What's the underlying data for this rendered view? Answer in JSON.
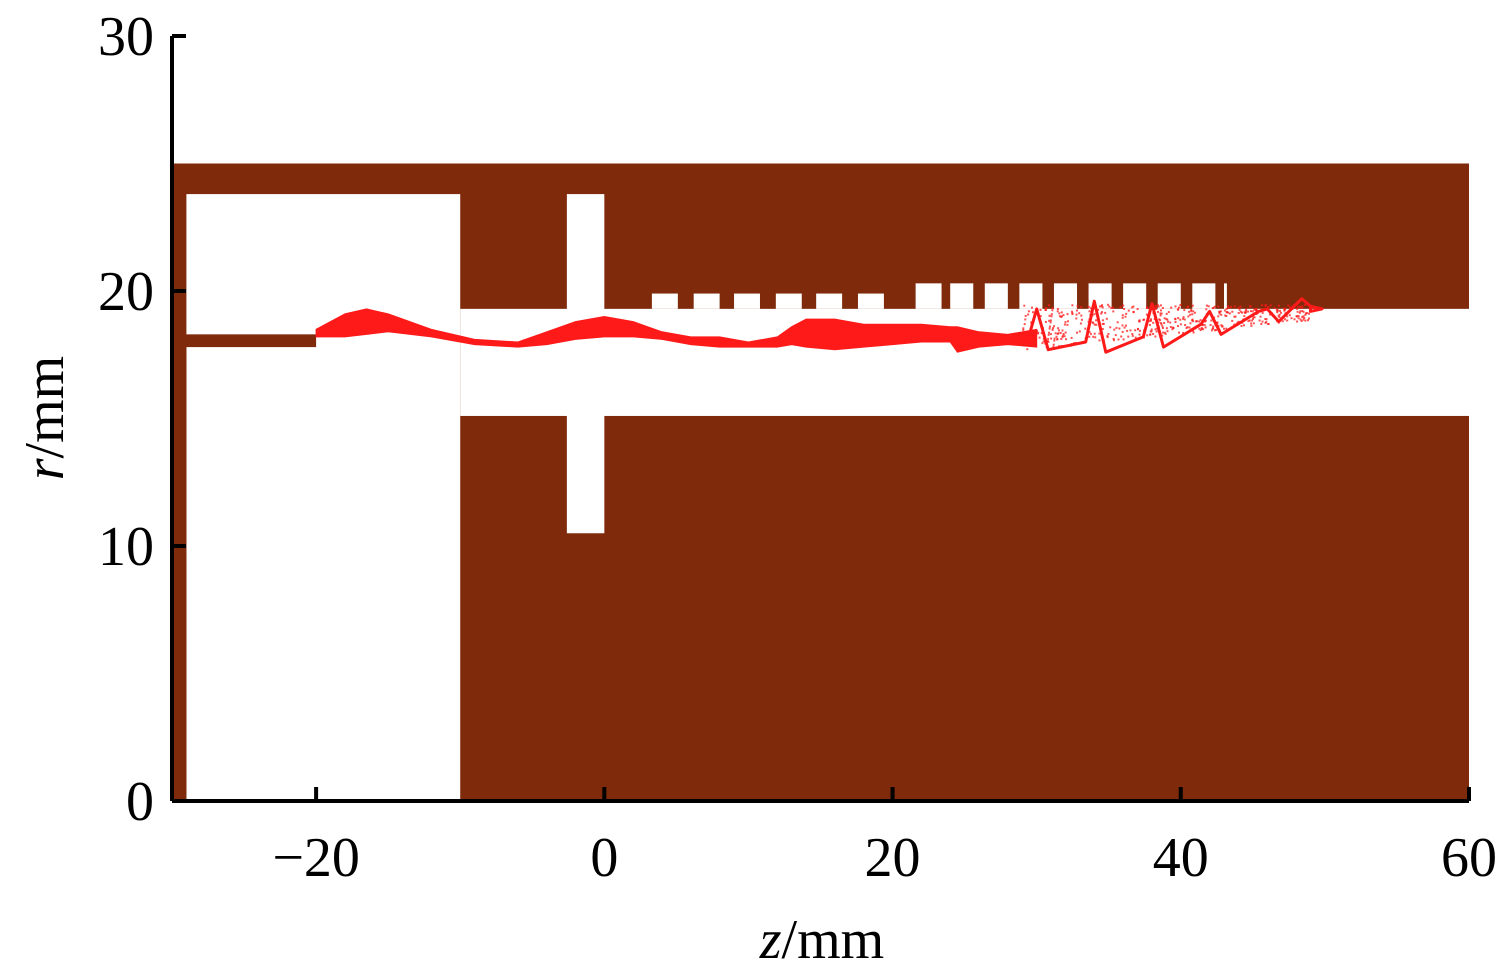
{
  "chart_data": {
    "type": "scatter",
    "xlabel_var": "z",
    "xlabel_unit": "/mm",
    "ylabel_var": "r",
    "ylabel_unit": "/mm",
    "xlim": [
      -30,
      60
    ],
    "ylim": [
      0,
      30
    ],
    "xticks": [
      -20,
      0,
      20,
      40,
      60
    ],
    "xtick_labels": [
      "−20",
      "0",
      "20",
      "40",
      "60"
    ],
    "yticks": [
      0,
      10,
      20,
      30
    ],
    "ytick_labels": [
      "0",
      "10",
      "20",
      "30"
    ],
    "grid": false,
    "colors": {
      "metal": "#7f2a0a",
      "beam": "#ff1a1a",
      "axis": "#000000"
    },
    "structure": {
      "outer_wall": {
        "z": [
          -30,
          60
        ],
        "r": [
          24.0,
          25.0
        ]
      },
      "cathode_rod": {
        "z": [
          -30,
          -29
        ],
        "r": [
          0,
          18.2
        ]
      },
      "cathode_tip": {
        "z": [
          -30,
          -20
        ],
        "r": [
          17.8,
          18.3
        ]
      },
      "cathode_cavity": {
        "z": [
          -29,
          -10
        ],
        "r": [
          0,
          23.8
        ]
      },
      "drift_tube_gap": {
        "z": [
          -10,
          60
        ],
        "r": [
          15.1,
          19.3
        ]
      },
      "extractor_slot": {
        "z": [
          -2.6,
          0
        ],
        "r": [
          10.5,
          23.8
        ]
      },
      "slow_wave_slots": [
        {
          "z": [
            3.3,
            5.1
          ],
          "r": [
            19.3,
            19.9
          ]
        },
        {
          "z": [
            6.2,
            8.0
          ],
          "r": [
            19.3,
            19.9
          ]
        },
        {
          "z": [
            9.0,
            10.8
          ],
          "r": [
            19.3,
            19.9
          ]
        },
        {
          "z": [
            11.9,
            13.7
          ],
          "r": [
            19.3,
            19.9
          ]
        },
        {
          "z": [
            14.7,
            16.5
          ],
          "r": [
            19.3,
            19.9
          ]
        },
        {
          "z": [
            17.6,
            19.4
          ],
          "r": [
            19.3,
            19.9
          ]
        },
        {
          "z": [
            21.6,
            23.4
          ],
          "r": [
            19.3,
            20.3
          ]
        },
        {
          "z": [
            24.0,
            25.6
          ],
          "r": [
            19.3,
            20.3
          ]
        },
        {
          "z": [
            26.4,
            28.0
          ],
          "r": [
            19.3,
            20.3
          ]
        },
        {
          "z": [
            28.8,
            30.4
          ],
          "r": [
            19.3,
            20.3
          ]
        },
        {
          "z": [
            31.2,
            32.8
          ],
          "r": [
            19.3,
            20.3
          ]
        },
        {
          "z": [
            33.6,
            35.2
          ],
          "r": [
            19.3,
            20.3
          ]
        },
        {
          "z": [
            36.0,
            37.6
          ],
          "r": [
            19.3,
            20.3
          ]
        },
        {
          "z": [
            38.4,
            40.0
          ],
          "r": [
            19.3,
            20.3
          ]
        },
        {
          "z": [
            40.8,
            42.4
          ],
          "r": [
            19.3,
            20.3
          ]
        },
        {
          "z": [
            43.0,
            43.2
          ],
          "r": [
            19.3,
            20.3
          ]
        }
      ]
    },
    "beam_envelope": {
      "z": [
        -20,
        -18,
        -16.5,
        -15,
        -12,
        -9,
        -6,
        -4,
        -2,
        0,
        2,
        4,
        6,
        8,
        10,
        12,
        13,
        14,
        16,
        18,
        20,
        22,
        24,
        24.5,
        26,
        28,
        30
      ],
      "r_upper": [
        18.5,
        19.1,
        19.3,
        19.1,
        18.5,
        18.1,
        18.0,
        18.4,
        18.8,
        19.0,
        18.8,
        18.4,
        18.2,
        18.2,
        18.0,
        18.2,
        18.6,
        18.9,
        18.9,
        18.7,
        18.7,
        18.7,
        18.6,
        18.6,
        18.4,
        18.3,
        18.5
      ],
      "r_lower": [
        18.2,
        18.2,
        18.3,
        18.4,
        18.2,
        17.9,
        17.8,
        17.9,
        18.1,
        18.2,
        18.2,
        18.1,
        17.9,
        17.8,
        17.8,
        17.8,
        17.9,
        17.8,
        17.7,
        17.8,
        17.9,
        18.0,
        18.0,
        17.6,
        17.8,
        17.9,
        17.8
      ]
    },
    "beam_scatter_region": {
      "z_start": 29,
      "z_end": 49,
      "peaks": [
        {
          "z": 30,
          "r_top": 19.3,
          "r_bottom": 17.7
        },
        {
          "z": 34,
          "r_top": 19.6,
          "r_bottom": 17.6
        },
        {
          "z": 38,
          "r_top": 19.5,
          "r_bottom": 17.8
        },
        {
          "z": 42,
          "r_top": 19.2,
          "r_bottom": 18.3
        },
        {
          "z": 46,
          "r_top": 19.3,
          "r_bottom": 18.8
        },
        {
          "z": 49,
          "r_top": 19.4,
          "r_bottom": 19.3
        }
      ]
    }
  }
}
